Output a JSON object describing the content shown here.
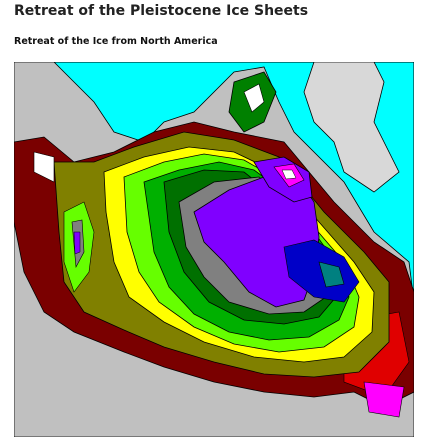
{
  "header": {
    "title": "Retreat of the Pleistocene Ice Sheets",
    "subtitle": "Retreat of the Ice from North America"
  }
}
